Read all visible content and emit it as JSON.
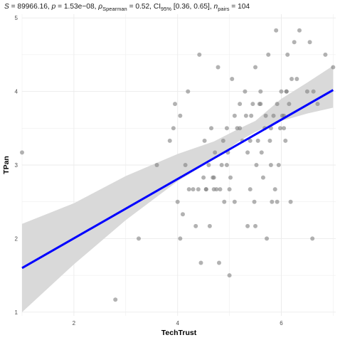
{
  "subtitle": {
    "S_label": "S",
    "S_value": " = 89966.16, ",
    "p_label": "p",
    "p_value": " = 1.53e−08, ",
    "rho_symbol": "ρ",
    "rho_sub": "Spearman",
    "rho_value": " = 0.52, CI",
    "ci_sub": "95%",
    "ci_value": " [0.36, 0.65], ",
    "n_label": "n",
    "n_sub": "pairs",
    "n_value": " = 104"
  },
  "chart_data": {
    "type": "scatter",
    "xlabel": "TechTrust",
    "ylabel": "TPan",
    "xlim": [
      1.0,
      7.05
    ],
    "ylim": [
      0.95,
      5.05
    ],
    "x_ticks": [
      2,
      4,
      6
    ],
    "y_ticks": [
      1,
      2,
      3,
      4,
      5
    ],
    "grid": true,
    "point_color": "#7f7f7f",
    "point_opacity": 0.6,
    "line_color": "#0000ff",
    "ribbon_color": "#d9d9d9",
    "fit_line": {
      "x": [
        1.0,
        7.0
      ],
      "y": [
        1.6,
        4.02
      ]
    },
    "confidence_band": {
      "x": [
        1.0,
        2.0,
        3.0,
        4.0,
        4.7,
        5.2,
        5.5,
        6.0,
        6.5,
        7.0
      ],
      "lower": [
        1.0,
        1.65,
        2.25,
        2.78,
        3.08,
        3.33,
        3.45,
        3.6,
        3.7,
        3.78
      ],
      "upper": [
        2.2,
        2.48,
        2.85,
        3.15,
        3.32,
        3.5,
        3.6,
        3.9,
        4.12,
        4.35
      ]
    },
    "points": [
      {
        "x": 1.0,
        "y": 3.17
      },
      {
        "x": 2.8,
        "y": 1.17
      },
      {
        "x": 3.25,
        "y": 2.0
      },
      {
        "x": 3.6,
        "y": 3.0
      },
      {
        "x": 3.85,
        "y": 3.33
      },
      {
        "x": 3.92,
        "y": 3.5
      },
      {
        "x": 3.95,
        "y": 3.83
      },
      {
        "x": 4.0,
        "y": 2.5
      },
      {
        "x": 4.05,
        "y": 2.0
      },
      {
        "x": 4.05,
        "y": 3.67
      },
      {
        "x": 4.1,
        "y": 2.33
      },
      {
        "x": 4.15,
        "y": 3.0
      },
      {
        "x": 4.2,
        "y": 4.0
      },
      {
        "x": 4.22,
        "y": 2.67
      },
      {
        "x": 4.3,
        "y": 2.67
      },
      {
        "x": 4.35,
        "y": 2.17
      },
      {
        "x": 4.4,
        "y": 2.67
      },
      {
        "x": 4.42,
        "y": 4.5
      },
      {
        "x": 4.45,
        "y": 1.67
      },
      {
        "x": 4.5,
        "y": 2.83
      },
      {
        "x": 4.52,
        "y": 3.33
      },
      {
        "x": 4.55,
        "y": 2.67
      },
      {
        "x": 4.6,
        "y": 3.0
      },
      {
        "x": 4.62,
        "y": 2.17
      },
      {
        "x": 4.65,
        "y": 3.5
      },
      {
        "x": 4.68,
        "y": 2.83
      },
      {
        "x": 4.7,
        "y": 2.67
      },
      {
        "x": 4.72,
        "y": 3.17
      },
      {
        "x": 4.75,
        "y": 2.67
      },
      {
        "x": 4.78,
        "y": 4.33
      },
      {
        "x": 4.8,
        "y": 1.67
      },
      {
        "x": 4.82,
        "y": 2.67
      },
      {
        "x": 4.85,
        "y": 3.0
      },
      {
        "x": 4.88,
        "y": 3.33
      },
      {
        "x": 4.9,
        "y": 2.5
      },
      {
        "x": 4.95,
        "y": 3.5
      },
      {
        "x": 4.97,
        "y": 3.17
      },
      {
        "x": 5.0,
        "y": 1.5
      },
      {
        "x": 5.0,
        "y": 2.67
      },
      {
        "x": 5.02,
        "y": 2.83
      },
      {
        "x": 5.05,
        "y": 4.17
      },
      {
        "x": 5.1,
        "y": 3.67
      },
      {
        "x": 5.1,
        "y": 2.5
      },
      {
        "x": 5.15,
        "y": 3.5
      },
      {
        "x": 5.2,
        "y": 3.83
      },
      {
        "x": 5.25,
        "y": 3.33
      },
      {
        "x": 5.3,
        "y": 4.0
      },
      {
        "x": 5.32,
        "y": 3.67
      },
      {
        "x": 5.35,
        "y": 3.17
      },
      {
        "x": 5.4,
        "y": 2.67
      },
      {
        "x": 5.42,
        "y": 3.67
      },
      {
        "x": 5.45,
        "y": 3.83
      },
      {
        "x": 5.48,
        "y": 2.5
      },
      {
        "x": 5.5,
        "y": 4.33
      },
      {
        "x": 5.5,
        "y": 2.17
      },
      {
        "x": 5.52,
        "y": 3.0
      },
      {
        "x": 5.55,
        "y": 3.33
      },
      {
        "x": 5.58,
        "y": 3.83
      },
      {
        "x": 5.6,
        "y": 4.0
      },
      {
        "x": 5.62,
        "y": 3.17
      },
      {
        "x": 5.65,
        "y": 2.83
      },
      {
        "x": 5.68,
        "y": 3.5
      },
      {
        "x": 5.7,
        "y": 3.67
      },
      {
        "x": 5.72,
        "y": 2.0
      },
      {
        "x": 5.75,
        "y": 4.5
      },
      {
        "x": 5.78,
        "y": 3.33
      },
      {
        "x": 5.8,
        "y": 3.0
      },
      {
        "x": 5.82,
        "y": 2.5
      },
      {
        "x": 5.85,
        "y": 3.67
      },
      {
        "x": 5.88,
        "y": 2.67
      },
      {
        "x": 5.9,
        "y": 4.83
      },
      {
        "x": 5.92,
        "y": 3.83
      },
      {
        "x": 5.95,
        "y": 3.0
      },
      {
        "x": 5.98,
        "y": 3.5
      },
      {
        "x": 6.0,
        "y": 4.0
      },
      {
        "x": 6.02,
        "y": 3.67
      },
      {
        "x": 6.05,
        "y": 3.5
      },
      {
        "x": 6.08,
        "y": 3.33
      },
      {
        "x": 6.1,
        "y": 4.0
      },
      {
        "x": 6.12,
        "y": 4.5
      },
      {
        "x": 6.15,
        "y": 3.83
      },
      {
        "x": 6.18,
        "y": 2.5
      },
      {
        "x": 6.2,
        "y": 4.17
      },
      {
        "x": 6.25,
        "y": 4.67
      },
      {
        "x": 6.3,
        "y": 4.17
      },
      {
        "x": 6.35,
        "y": 4.83
      },
      {
        "x": 6.5,
        "y": 4.0
      },
      {
        "x": 6.55,
        "y": 4.67
      },
      {
        "x": 6.6,
        "y": 2.0
      },
      {
        "x": 6.62,
        "y": 4.0
      },
      {
        "x": 6.7,
        "y": 3.83
      },
      {
        "x": 6.85,
        "y": 4.5
      },
      {
        "x": 7.0,
        "y": 4.33
      },
      {
        "x": 5.92,
        "y": 2.5
      },
      {
        "x": 5.35,
        "y": 2.17
      },
      {
        "x": 5.6,
        "y": 3.83
      },
      {
        "x": 4.7,
        "y": 2.83
      },
      {
        "x": 6.1,
        "y": 4.0
      },
      {
        "x": 5.8,
        "y": 3.5
      },
      {
        "x": 4.55,
        "y": 2.67
      },
      {
        "x": 5.2,
        "y": 3.5
      },
      {
        "x": 4.95,
        "y": 3.0
      },
      {
        "x": 6.05,
        "y": 3.67
      },
      {
        "x": 5.4,
        "y": 3.33
      }
    ]
  }
}
